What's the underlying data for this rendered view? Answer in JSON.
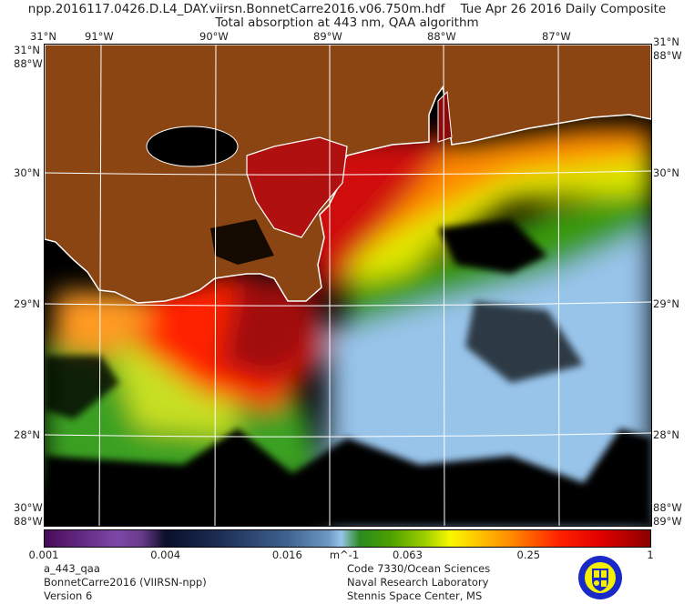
{
  "header": {
    "filename": "npp.2016117.0426.D.L4_DAY.viirsn.BonnetCarre2016.v06.750m.hdf",
    "date": "Tue Apr 26 2016 Daily Composite",
    "subtitle": "Total absorption at 443 nm, QAA algorithm"
  },
  "map": {
    "lon_labels": [
      "91°W",
      "90°W",
      "89°W",
      "88°W",
      "87°W"
    ],
    "lat_labels": [
      "30°N",
      "29°N",
      "28°N"
    ],
    "corner_labels": {
      "top_left_lat": "31°N",
      "top_left_lon": "88°W",
      "top_right_lat": "31°N",
      "top_right_lon": "88°W",
      "bottom_left_a": "30°W",
      "bottom_left_b": "88°W",
      "bottom_right_a": "88°W",
      "bottom_right_b": "89°W"
    },
    "colors": {
      "land": "#8B4513",
      "cloud": "#000000",
      "coast": "#ffffff"
    }
  },
  "colorbar": {
    "units": "m^-1",
    "ticks": [
      {
        "label": "0.001",
        "value": 0.001
      },
      {
        "label": "0.004",
        "value": 0.004
      },
      {
        "label": "0.016",
        "value": 0.016
      },
      {
        "label": "0.063",
        "value": 0.063
      },
      {
        "label": "0.25",
        "value": 0.25
      },
      {
        "label": "1",
        "value": 1
      }
    ],
    "range": [
      0.001,
      1
    ],
    "scale": "log"
  },
  "footer": {
    "left": [
      "a_443_qaa",
      "BonnetCarre2016 (VIIRSN-npp)",
      "Version 6"
    ],
    "right": [
      "Code 7330/Ocean Sciences",
      "Naval Research Laboratory",
      "Stennis Space Center, MS"
    ]
  }
}
